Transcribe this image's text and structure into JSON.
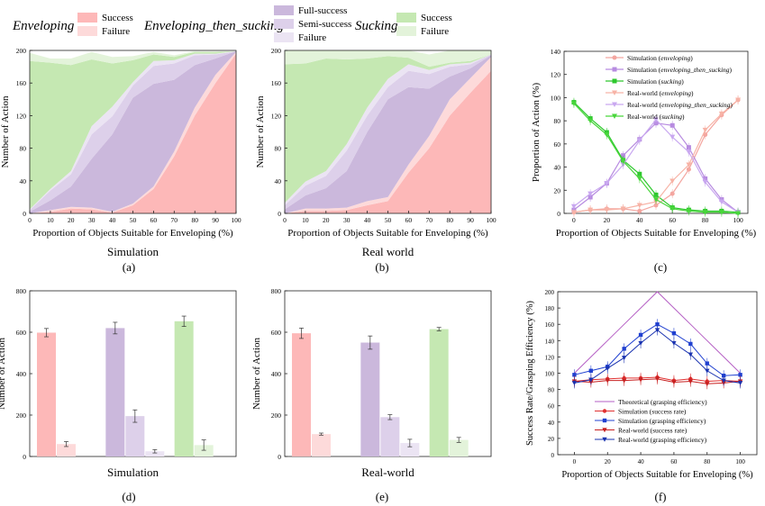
{
  "colors": {
    "success": "#fdb8b8",
    "failure": "#fddada",
    "full": "#cbb8dc",
    "semi": "#ddd0ea",
    "efail": "#ebe4f3",
    "ssuccess": "#c5e8b2",
    "sfailure": "#e3f3da",
    "sim_env": "#f4a6a0",
    "sim_ets": "#b78be0",
    "sim_suck": "#2ec82e",
    "real_env": "#f7b3a6",
    "real_ets": "#c9a8f0",
    "real_suck": "#49d63b",
    "theo": "#b55fc4",
    "sim_sr": "#e03030",
    "sim_ge": "#2040d0",
    "real_sr": "#c82020",
    "real_ge": "#1a33b0"
  },
  "legend_top": {
    "enveloping_title": "Enveloping",
    "ets_title": "Enveloping_then_sucking",
    "sucking_title": "Sucking",
    "success": "Success",
    "failure": "Failure",
    "full_success": "Full-success",
    "semi_success": "Semi-success",
    "ets_failure": "Failure",
    "s_success": "Success",
    "s_failure": "Failure"
  },
  "panel_labels": {
    "a": "(a)",
    "b": "(b)",
    "c": "(c)",
    "d": "(d)",
    "e": "(e)",
    "f": "(f)"
  },
  "chart_data": [
    {
      "id": "a",
      "type": "area",
      "title": "Simulation",
      "xlabel": "Proportion of Objects Suitable for Enveloping (%)",
      "ylabel": "Number of Action",
      "x": [
        0,
        10,
        20,
        30,
        40,
        50,
        60,
        70,
        80,
        90,
        100
      ],
      "xlim": [
        0,
        100
      ],
      "ylim": [
        0,
        200
      ],
      "xticks": [
        0,
        10,
        20,
        30,
        40,
        50,
        60,
        70,
        80,
        90,
        100
      ],
      "yticks": [
        0,
        40,
        80,
        120,
        160,
        200
      ],
      "series": [
        {
          "name": "Enveloping Success",
          "values": [
            0,
            2,
            6,
            5,
            1,
            10,
            30,
            70,
            120,
            160,
            196
          ]
        },
        {
          "name": "Enveloping Failure",
          "values": [
            0,
            2,
            2,
            2,
            1,
            2,
            3,
            6,
            10,
            10,
            2
          ]
        },
        {
          "name": "Full-success",
          "values": [
            2,
            12,
            25,
            60,
            95,
            130,
            126,
            88,
            52,
            20,
            1
          ]
        },
        {
          "name": "Semi-success",
          "values": [
            2,
            12,
            15,
            30,
            22,
            15,
            22,
            20,
            12,
            5,
            0
          ]
        },
        {
          "name": "Failure (ETS)",
          "values": [
            1,
            2,
            4,
            10,
            12,
            4,
            6,
            4,
            2,
            1,
            0
          ]
        },
        {
          "name": "Sucking Success",
          "values": [
            182,
            155,
            130,
            82,
            53,
            27,
            8,
            4,
            2,
            2,
            0
          ]
        },
        {
          "name": "Sucking Failure",
          "values": [
            10,
            5,
            8,
            9,
            8,
            5,
            3,
            2,
            1,
            1,
            0
          ]
        }
      ]
    },
    {
      "id": "b",
      "type": "area",
      "title": "Real world",
      "xlabel": "Proportion of Objects Suitable for Enveloping (%)",
      "ylabel": "Number of Action",
      "x": [
        0,
        10,
        20,
        30,
        40,
        50,
        60,
        70,
        80,
        90,
        100
      ],
      "xlim": [
        0,
        100
      ],
      "ylim": [
        0,
        200
      ],
      "xticks": [
        0,
        10,
        20,
        30,
        40,
        50,
        60,
        70,
        80,
        90,
        100
      ],
      "yticks": [
        0,
        40,
        80,
        120,
        160,
        200
      ],
      "series": [
        {
          "name": "Enveloping Success",
          "values": [
            0,
            3,
            3,
            4,
            10,
            15,
            50,
            80,
            120,
            148,
            175
          ]
        },
        {
          "name": "Enveloping Failure",
          "values": [
            0,
            3,
            3,
            3,
            5,
            5,
            10,
            15,
            20,
            18,
            17
          ]
        },
        {
          "name": "Full-success",
          "values": [
            5,
            16,
            25,
            45,
            85,
            120,
            95,
            58,
            28,
            12,
            2
          ]
        },
        {
          "name": "Semi-success",
          "values": [
            5,
            12,
            15,
            25,
            20,
            15,
            20,
            18,
            12,
            5,
            1
          ]
        },
        {
          "name": "Failure (ETS)",
          "values": [
            3,
            5,
            6,
            8,
            10,
            10,
            8,
            5,
            3,
            2,
            0
          ]
        },
        {
          "name": "Sucking Success",
          "values": [
            170,
            145,
            138,
            104,
            60,
            28,
            8,
            4,
            2,
            2,
            0
          ]
        },
        {
          "name": "Sucking Failure",
          "values": [
            17,
            16,
            10,
            11,
            10,
            7,
            9,
            15,
            15,
            13,
            5
          ]
        }
      ]
    },
    {
      "id": "c",
      "type": "line",
      "xlabel": "Proportion of Objects Suitable for Enveloping (%)",
      "ylabel": "Proportion of Action (%)",
      "x": [
        0,
        10,
        20,
        30,
        40,
        50,
        60,
        70,
        80,
        90,
        100
      ],
      "xlim": [
        -6,
        106
      ],
      "ylim": [
        0,
        140
      ],
      "xticks": [
        0,
        20,
        40,
        60,
        80,
        100
      ],
      "yticks": [
        0,
        20,
        40,
        60,
        80,
        100,
        120,
        140
      ],
      "series": [
        {
          "name": "Simulation (enveloping)",
          "label_plain": "Simulation (",
          "label_it": "enveloping",
          "label_end": ")",
          "marker": "circle",
          "color": "sim_env",
          "values": [
            1,
            3,
            4,
            4,
            2,
            7,
            17,
            38,
            68,
            85,
            98
          ]
        },
        {
          "name": "Simulation (enveloping_then_sucking)",
          "label_plain": "Simulation (",
          "label_it": "enveloping_then_sucking",
          "label_end": ")",
          "marker": "square",
          "color": "sim_ets",
          "values": [
            3,
            14,
            26,
            50,
            64,
            78,
            76,
            57,
            30,
            12,
            1
          ]
        },
        {
          "name": "Simulation (sucking)",
          "label_plain": "Simulation (",
          "label_it": "sucking",
          "label_end": ")",
          "marker": "square",
          "color": "sim_suck",
          "values": [
            96,
            82,
            70,
            46,
            34,
            16,
            5,
            3,
            2,
            2,
            1
          ]
        },
        {
          "name": "Real-world (enveloping)",
          "label_plain": "Real-world (",
          "label_it": "enveloping",
          "label_end": ")",
          "marker": "tri-down",
          "color": "real_env",
          "values": [
            1,
            3,
            3,
            4,
            7,
            10,
            28,
            42,
            72,
            86,
            98
          ]
        },
        {
          "name": "Real-world (enveloping_then_sucking)",
          "label_plain": "Real-world (",
          "label_it": "enveloping_then_sucking",
          "label_end": ")",
          "marker": "tri-down",
          "color": "real_ets",
          "values": [
            6,
            17,
            26,
            42,
            63,
            81,
            66,
            53,
            27,
            10,
            1
          ]
        },
        {
          "name": "Real-world (sucking)",
          "label_plain": "Real-world (",
          "label_it": "sucking",
          "label_end": ")",
          "marker": "tri-down",
          "color": "real_suck",
          "values": [
            95,
            80,
            68,
            45,
            30,
            12,
            4,
            2,
            1,
            1,
            0
          ]
        }
      ]
    },
    {
      "id": "d",
      "type": "bar",
      "title": "Simulation",
      "ylabel": "Number of Action",
      "ylim": [
        0,
        800
      ],
      "yticks": [
        0,
        200,
        400,
        600,
        800
      ],
      "bars": [
        {
          "group": 0,
          "value": 598,
          "err": 20,
          "color": "success"
        },
        {
          "group": 0,
          "value": 60,
          "err": 12,
          "color": "failure"
        },
        {
          "group": 1,
          "value": 620,
          "err": 28,
          "color": "full"
        },
        {
          "group": 1,
          "value": 195,
          "err": 30,
          "color": "semi"
        },
        {
          "group": 1,
          "value": 25,
          "err": 8,
          "color": "efail"
        },
        {
          "group": 2,
          "value": 653,
          "err": 25,
          "color": "ssuccess"
        },
        {
          "group": 2,
          "value": 55,
          "err": 25,
          "color": "sfailure"
        }
      ]
    },
    {
      "id": "e",
      "type": "bar",
      "title": "Real-world",
      "ylabel": "Number of Action",
      "ylim": [
        0,
        800
      ],
      "yticks": [
        0,
        200,
        400,
        600,
        800
      ],
      "bars": [
        {
          "group": 0,
          "value": 595,
          "err": 25,
          "color": "success"
        },
        {
          "group": 0,
          "value": 108,
          "err": 5,
          "color": "failure"
        },
        {
          "group": 1,
          "value": 550,
          "err": 32,
          "color": "full"
        },
        {
          "group": 1,
          "value": 190,
          "err": 12,
          "color": "semi"
        },
        {
          "group": 1,
          "value": 65,
          "err": 18,
          "color": "efail"
        },
        {
          "group": 2,
          "value": 615,
          "err": 8,
          "color": "ssuccess"
        },
        {
          "group": 2,
          "value": 80,
          "err": 12,
          "color": "sfailure"
        }
      ]
    },
    {
      "id": "f",
      "type": "line",
      "xlabel": "Proportion of Objects Suitable for Enveloping (%)",
      "ylabel": "Success Rate/Grasping Efficiency (%)",
      "x": [
        0,
        10,
        20,
        30,
        40,
        50,
        60,
        70,
        80,
        90,
        100
      ],
      "xlim": [
        -10,
        110
      ],
      "ylim": [
        0,
        200
      ],
      "xticks": [
        0,
        20,
        40,
        60,
        80,
        100
      ],
      "yticks": [
        0,
        20,
        40,
        60,
        80,
        100,
        120,
        140,
        160,
        180,
        200
      ],
      "series": [
        {
          "name": "Theoretical (grasping efficiency)",
          "marker": "none",
          "color": "theo",
          "values": [
            100,
            120,
            140,
            160,
            180,
            200,
            180,
            160,
            140,
            120,
            100
          ]
        },
        {
          "name": "Simulation (success rate)",
          "marker": "circle",
          "color": "sim_sr",
          "values": [
            90,
            92,
            93,
            94,
            94,
            95,
            91,
            93,
            90,
            91,
            90
          ]
        },
        {
          "name": "Simulation (grasping efficiency)",
          "marker": "square",
          "color": "sim_ge",
          "values": [
            98,
            103,
            108,
            130,
            147,
            160,
            149,
            136,
            112,
            97,
            98
          ]
        },
        {
          "name": "Real-world (success rate)",
          "marker": "tri-down",
          "color": "real_sr",
          "values": [
            90,
            89,
            91,
            91,
            92,
            93,
            89,
            90,
            87,
            88,
            90
          ]
        },
        {
          "name": "Real-world (grasping efficiency)",
          "marker": "tri-down",
          "color": "real_ge",
          "values": [
            88,
            92,
            106,
            119,
            137,
            153,
            137,
            123,
            103,
            91,
            88
          ]
        }
      ]
    }
  ]
}
